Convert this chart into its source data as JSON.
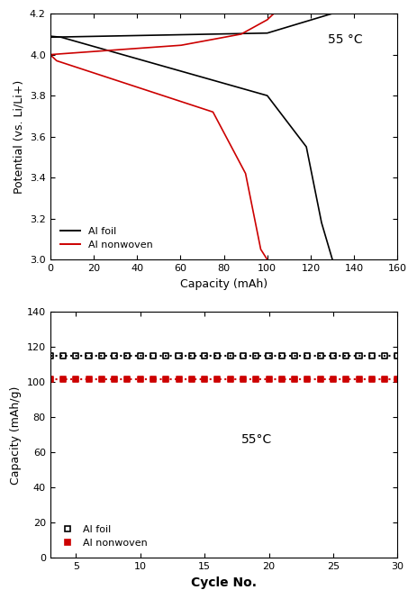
{
  "top_chart": {
    "title": "55 °C",
    "xlabel": "Capacity (mAh)",
    "ylabel": "Potential (vs. Li/Li+)",
    "xlim": [
      0,
      160
    ],
    "ylim": [
      3.0,
      4.2
    ],
    "xticks": [
      0,
      20,
      40,
      60,
      80,
      100,
      120,
      140,
      160
    ],
    "yticks": [
      3.0,
      3.2,
      3.4,
      3.6,
      3.8,
      4.0,
      4.2
    ],
    "black_color": "#000000",
    "red_color": "#cc0000",
    "legend_labels": [
      "Al foil",
      "Al nonwoven"
    ]
  },
  "bottom_chart": {
    "title": "55°C",
    "xlabel": "Cycle No.",
    "ylabel": "Capacity (mAh/g)",
    "xlim": [
      3,
      30
    ],
    "ylim": [
      0,
      140
    ],
    "xticks": [
      5,
      10,
      15,
      20,
      25,
      30
    ],
    "yticks": [
      0,
      20,
      40,
      60,
      80,
      100,
      120,
      140
    ],
    "black_value": 115.0,
    "red_value": 102.0,
    "black_color": "#000000",
    "red_color": "#cc0000",
    "legend_labels": [
      "Al foil",
      "Al nonwoven"
    ]
  }
}
